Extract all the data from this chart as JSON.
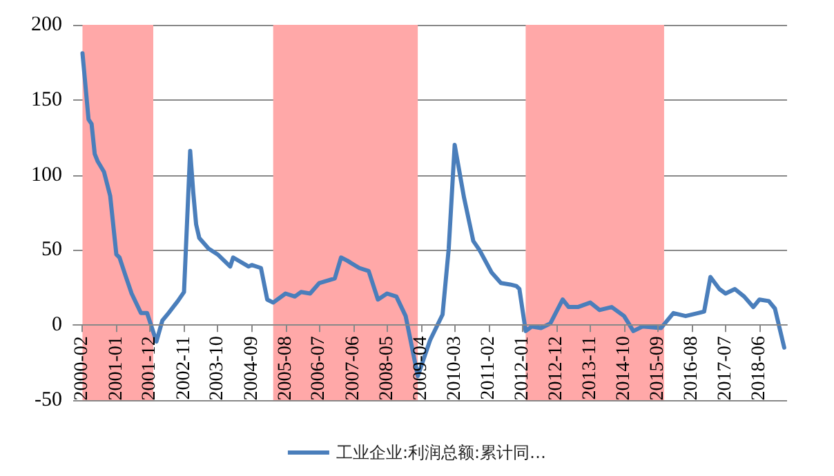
{
  "chart_data": {
    "type": "line",
    "x": [
      "2000-02",
      "2000-04",
      "2000-05",
      "2000-06",
      "2000-07",
      "2000-09",
      "2000-11",
      "2001-01",
      "2001-02",
      "2001-04",
      "2001-06",
      "2001-09",
      "2001-11",
      "2002-02",
      "2002-04",
      "2002-06",
      "2002-09",
      "2002-11",
      "2003-01",
      "2003-02",
      "2003-03",
      "2003-04",
      "2003-07",
      "2003-10",
      "2004-02",
      "2004-03",
      "2004-08",
      "2004-09",
      "2004-12",
      "2005-02",
      "2005-04",
      "2005-08",
      "2005-11",
      "2006-01",
      "2006-04",
      "2006-07",
      "2006-12",
      "2007-02",
      "2007-04",
      "2007-08",
      "2007-11",
      "2008-02",
      "2008-05",
      "2008-08",
      "2008-11",
      "2009-03",
      "2009-04",
      "2009-07",
      "2009-11",
      "2010-01",
      "2010-03",
      "2010-06",
      "2010-09",
      "2010-11",
      "2011-03",
      "2011-06",
      "2011-09",
      "2011-11",
      "2011-12",
      "2012-02",
      "2012-04",
      "2012-07",
      "2012-10",
      "2013-02",
      "2013-04",
      "2013-07",
      "2013-11",
      "2014-02",
      "2014-06",
      "2014-10",
      "2015-01",
      "2015-04",
      "2015-10",
      "2016-02",
      "2016-06",
      "2016-10",
      "2016-12",
      "2017-02",
      "2017-05",
      "2017-07",
      "2017-10",
      "2018-01",
      "2018-04",
      "2018-06",
      "2018-09",
      "2018-11",
      "2019-02"
    ],
    "series": [
      {
        "name": "工业企业:利润总额:累计同…",
        "color": "#4a7ebb",
        "values": [
          181,
          137,
          134,
          114,
          109,
          102,
          86,
          47,
          45,
          33,
          21,
          8,
          8,
          -11,
          3,
          8,
          16,
          22,
          116,
          88,
          67,
          58,
          51,
          47,
          39,
          45,
          39,
          40,
          38,
          17,
          15,
          21,
          19,
          22,
          21,
          28,
          31,
          45,
          43,
          38,
          36,
          17,
          21,
          19,
          6,
          -34,
          -28,
          -10,
          7,
          51,
          120,
          85,
          56,
          50,
          35,
          28,
          27,
          26,
          24,
          -4,
          -1,
          -2,
          1,
          17,
          12,
          12,
          15,
          10,
          12,
          6,
          -4,
          -1,
          -2,
          8,
          6,
          8,
          9,
          32,
          24,
          21,
          24,
          19,
          12,
          17,
          16,
          11,
          -15
        ]
      }
    ],
    "xlim": [
      "1999-11",
      "2019-03"
    ],
    "xticks": [
      "2000-02",
      "2001-01",
      "2001-12",
      "2002-11",
      "2003-10",
      "2004-09",
      "2005-08",
      "2006-07",
      "2007-06",
      "2008-05",
      "2009-04",
      "2010-03",
      "2011-02",
      "2012-01",
      "2012-12",
      "2013-11",
      "2014-10",
      "2015-09",
      "2016-08",
      "2017-07",
      "2018-06"
    ],
    "ylim": [
      -50,
      200
    ],
    "yticks": [
      -50,
      0,
      50,
      100,
      150,
      200
    ],
    "bands": [
      {
        "axis": "x",
        "from": "2000-02",
        "to": "2002-01",
        "color": "#ffa8a8"
      },
      {
        "axis": "x",
        "from": "2005-04",
        "to": "2009-03",
        "color": "#ffa8a8"
      },
      {
        "axis": "x",
        "from": "2012-02",
        "to": "2015-11",
        "color": "#ffa8a8"
      }
    ],
    "grid": "y",
    "legend": "bottom",
    "marker": "none",
    "line_style": "solid"
  }
}
